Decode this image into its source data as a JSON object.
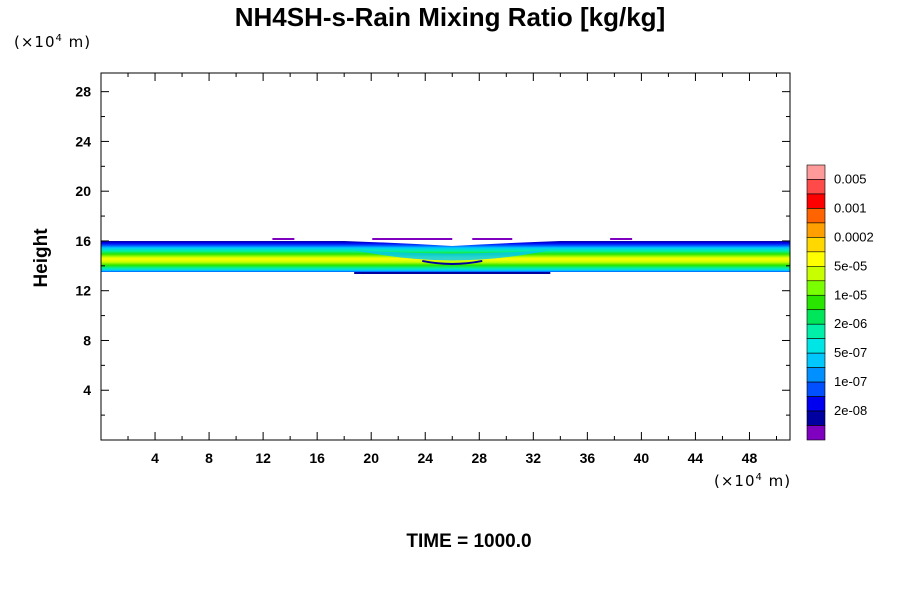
{
  "chart_data": {
    "type": "heatmap",
    "title": "NH4SH-s-Rain Mixing Ratio [kg/kg]",
    "xlabel": "",
    "ylabel": "Height",
    "x_unit": "(×10⁴ m)",
    "y_unit": "(×10⁴ m)",
    "xlim": [
      0,
      51
    ],
    "ylim": [
      0,
      29.5
    ],
    "x_ticks": [
      4,
      8,
      12,
      16,
      20,
      24,
      28,
      32,
      36,
      40,
      44,
      48
    ],
    "y_ticks": [
      4,
      8,
      12,
      16,
      20,
      24,
      28
    ],
    "colorbar": {
      "labels": [
        "0.005",
        "0.001",
        "0.0002",
        "5e-05",
        "1e-05",
        "2e-06",
        "5e-07",
        "1e-07",
        "2e-08"
      ],
      "colors": [
        "#ff9a9a",
        "#ff4a4a",
        "#ff0000",
        "#ff6400",
        "#ffa000",
        "#ffd800",
        "#ffff00",
        "#c8ff00",
        "#7aff00",
        "#28e600",
        "#00e65a",
        "#00f0aa",
        "#00e6e6",
        "#00c8ff",
        "#0090ff",
        "#0050ff",
        "#0000f0",
        "#0000a0",
        "#8000c0"
      ]
    },
    "contour_layer": {
      "base_height": 13.5,
      "top_height": 16.0,
      "x_range": [
        0,
        51
      ],
      "dip_center_x": 26,
      "dip_x_range": [
        18,
        34
      ]
    },
    "grid": false
  },
  "footer": {
    "time_label": "TIME = 1000.0"
  }
}
